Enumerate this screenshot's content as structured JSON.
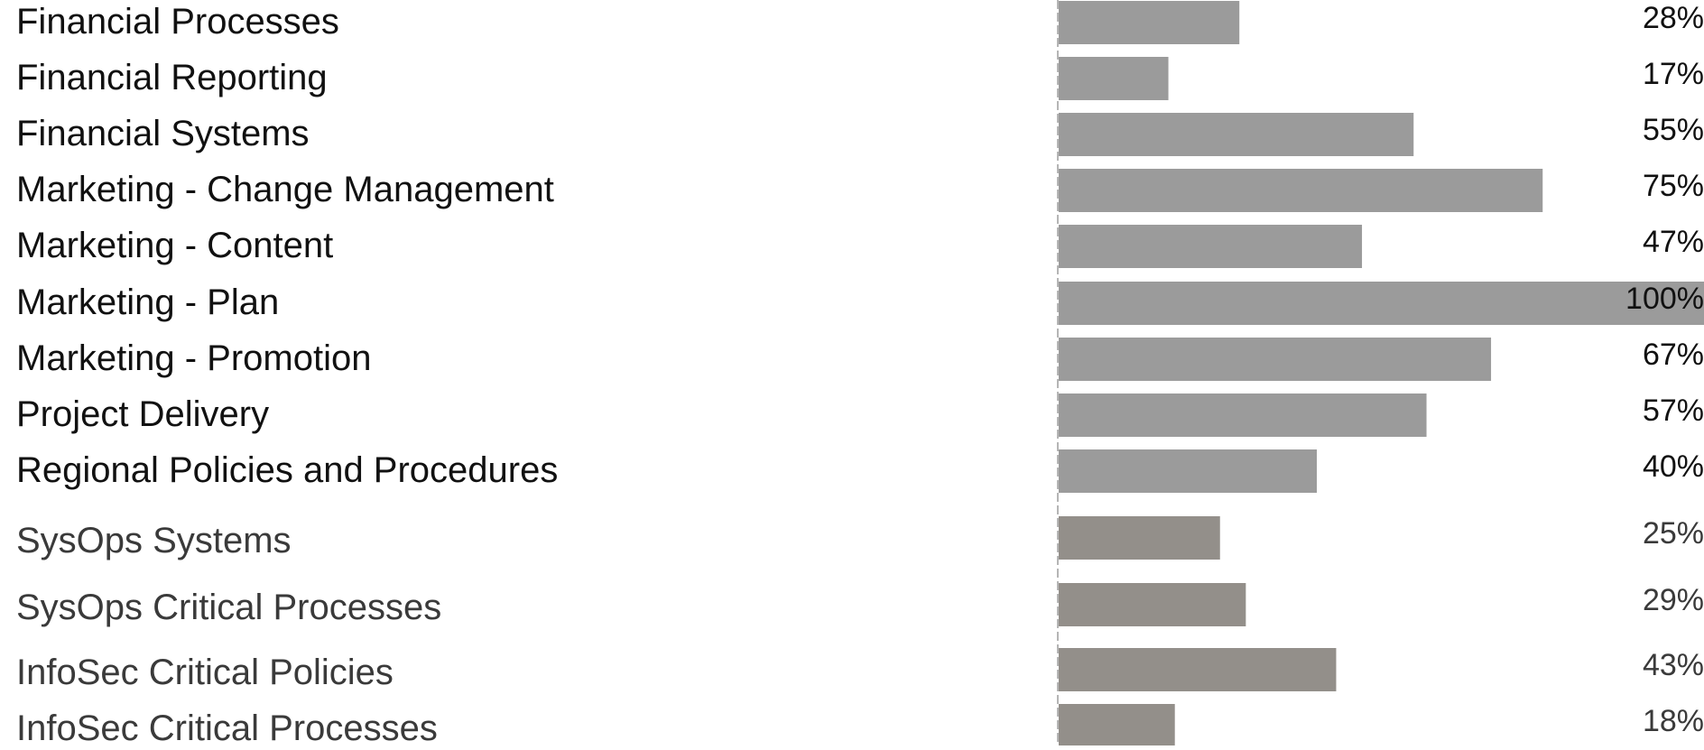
{
  "chart_data": {
    "type": "bar",
    "orientation": "horizontal",
    "categories": [
      "Financial Processes",
      "Financial Reporting",
      "Financial Systems",
      "Marketing - Change Management",
      "Marketing - Content",
      "Marketing - Plan",
      "Marketing - Promotion",
      "Project Delivery",
      "Regional Policies and Procedures",
      "SysOps Systems",
      "SysOps Critical Processes",
      "InfoSec Critical Policies",
      "InfoSec Critical Processes"
    ],
    "values": [
      28,
      17,
      55,
      75,
      47,
      100,
      67,
      57,
      40,
      25,
      29,
      43,
      18
    ],
    "value_labels": [
      "28%",
      "17%",
      "55%",
      "75%",
      "47%",
      "100%",
      "67%",
      "57%",
      "40%",
      "25%",
      "29%",
      "43%",
      "18%"
    ],
    "unit": "%",
    "xlim": [
      0,
      100
    ],
    "grid": false,
    "legend": "none",
    "colors": {
      "group_a_bar": "#9b9b9b",
      "group_b_bar": "#938f8a",
      "group_a_text": "#111111",
      "group_b_text": "#3a3a3a"
    },
    "group_a_count": 9
  }
}
